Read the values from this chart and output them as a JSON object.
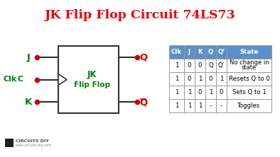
{
  "title": "JK Flip Flop Circuit 74LS73",
  "title_color": "#e8000d",
  "bg_color": "#ffffff",
  "table_header": [
    "Clk",
    "J",
    "K",
    "Q",
    "Q’",
    "State"
  ],
  "table_rows": [
    [
      "1",
      "0",
      "0",
      "Q",
      "Q’",
      "No change in\nstate"
    ],
    [
      "1",
      "0",
      "1",
      "0",
      "1",
      "Resets Q to 0"
    ],
    [
      "1",
      "1",
      "0",
      "1",
      "0",
      "Sets Q to 1"
    ],
    [
      "1",
      "1",
      "1",
      "-",
      "-",
      "Toggles"
    ]
  ],
  "table_header_bg": "#5b8fc9",
  "table_header_color": "#ffffff",
  "table_border_color": "#999999",
  "circuit_label_color": "#008000",
  "circuit_dot_color": "#cc0000",
  "circuit_output_color": "#cc0000",
  "circuit_box_color": "#333333",
  "circuit_text_color": "#008000",
  "logo_text": "CIRCUITS DIY",
  "logo_subtext": "www.circuits-diy.com",
  "logo_color": "#444444"
}
